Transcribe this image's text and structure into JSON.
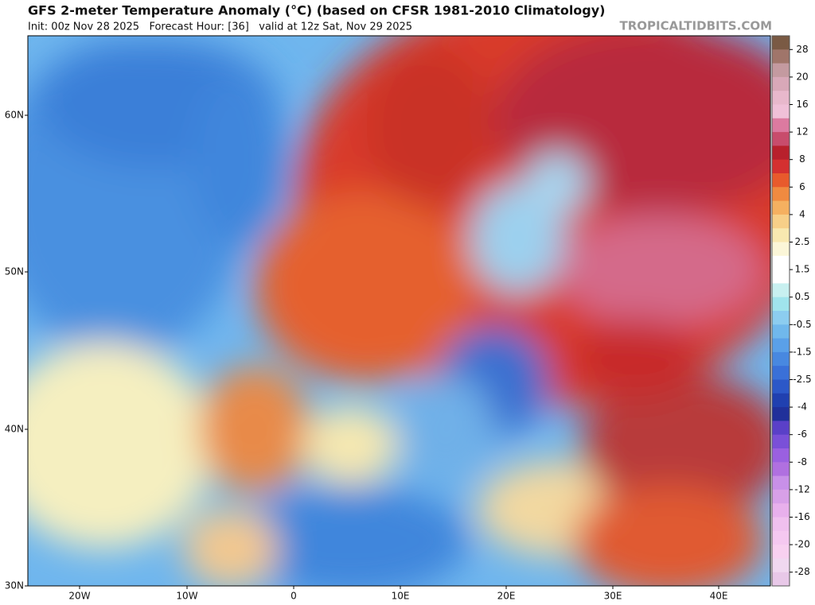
{
  "header": {
    "title": "GFS 2-meter Temperature Anomaly (°C) (based on CFSR 1981-2010 Climatology)",
    "subtitle": "Init: 00z Nov 28 2025   Forecast Hour: [36]   valid at 12z Sat, Nov 29 2025",
    "watermark": "TROPICALTIDBITS.COM"
  },
  "map": {
    "lat_labels": [
      "60N",
      "50N",
      "40N",
      "30N"
    ],
    "lon_labels": [
      "20W",
      "10W",
      "0",
      "10E",
      "20E",
      "30E",
      "40E"
    ]
  },
  "colorbar": {
    "labels": [
      28,
      20,
      16,
      12,
      8,
      6,
      4,
      2.5,
      1.5,
      0.5,
      -0.5,
      -1.5,
      -2.5,
      -4,
      -6,
      -8,
      -12,
      -16,
      -20,
      -28
    ]
  }
}
